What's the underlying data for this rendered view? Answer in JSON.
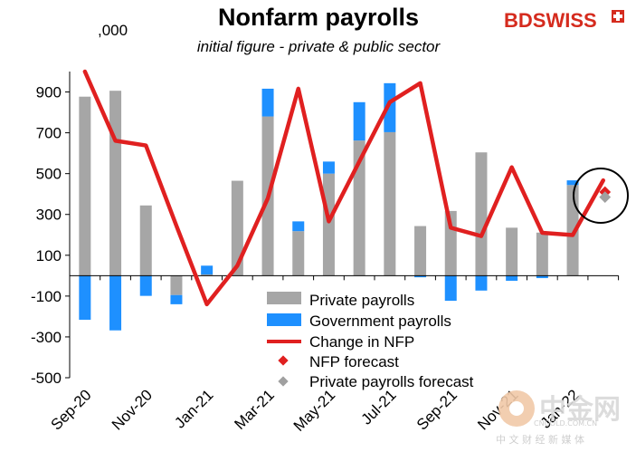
{
  "chart_data": {
    "type": "bar",
    "title": "Nonfarm payrolls",
    "subtitle": "initial figure - private & public sector",
    "unit_label": ",000",
    "x": [
      "Sep-20",
      "Oct-20",
      "Nov-20",
      "Dec-20",
      "Jan-21",
      "Feb-21",
      "Mar-21",
      "Apr-21",
      "May-21",
      "Jun-21",
      "Jul-21",
      "Aug-21",
      "Sep-21",
      "Oct-21",
      "Nov-21",
      "Dec-21",
      "Jan-22",
      "Feb-22"
    ],
    "x_tick_labels": [
      "Sep-20",
      "Nov-20",
      "Jan-21",
      "Mar-21",
      "May-21",
      "Jul-21",
      "Sep-21",
      "Nov-21",
      "Jan-22"
    ],
    "ylim": [
      -500,
      1000
    ],
    "y_ticks": [
      900,
      700,
      500,
      300,
      100,
      -100,
      -300,
      -500
    ],
    "y_tick_labels": [
      "900",
      "700",
      "500",
      "300",
      "100",
      "-100",
      "-300",
      "-500"
    ],
    "series": [
      {
        "name": "Private payrolls",
        "kind": "bar-stacked",
        "color": "#a6a6a6",
        "values": [
          877,
          906,
          344,
          -95,
          6,
          465,
          780,
          218,
          500,
          662,
          703,
          243,
          317,
          604,
          235,
          211,
          444,
          null
        ]
      },
      {
        "name": "Government payrolls",
        "kind": "bar-stacked",
        "color": "#1e90ff",
        "values": [
          -216,
          -268,
          -99,
          -45,
          43,
          0,
          136,
          48,
          59,
          188,
          240,
          -8,
          -123,
          -73,
          -25,
          -12,
          23,
          null
        ]
      },
      {
        "name": "Change in NFP",
        "kind": "line",
        "color": "#e02020",
        "values": [
          1000,
          661,
          638,
          245,
          -140,
          49,
          379,
          916,
          266,
          559,
          850,
          943,
          235,
          194,
          531,
          210,
          199,
          467
        ]
      },
      {
        "name": "NFP forecast",
        "kind": "marker",
        "color": "#e02020",
        "values": [
          null,
          null,
          null,
          null,
          null,
          null,
          null,
          null,
          null,
          null,
          null,
          null,
          null,
          null,
          null,
          null,
          null,
          410
        ]
      },
      {
        "name": "Private payrolls forecast",
        "kind": "marker",
        "color": "#a0a0a0",
        "values": [
          null,
          null,
          null,
          null,
          null,
          null,
          null,
          null,
          null,
          null,
          null,
          null,
          null,
          null,
          null,
          null,
          null,
          385
        ]
      }
    ],
    "legend_position": "bottom-center",
    "grid": false
  },
  "brand": {
    "logo_text": "BDSWISS",
    "logo_color": "#d52b1e"
  },
  "watermark": {
    "big_text": "中金网",
    "small_text": "中 文 财 经 新 媒 体",
    "url_text": "CNGOLD.COM.CN"
  }
}
